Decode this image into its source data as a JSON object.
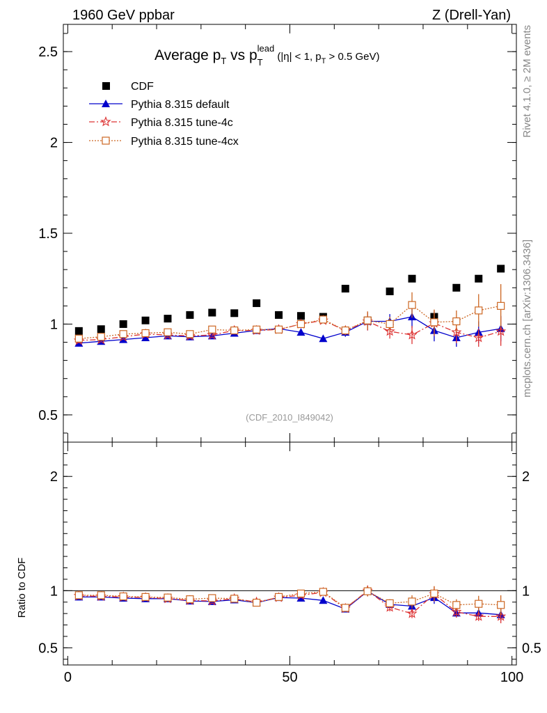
{
  "header": {
    "left": "1960 GeV ppbar",
    "right": "Z (Drell-Yan)"
  },
  "side_labels": {
    "rivet": "Rivet 4.1.0, ≥ 2M events",
    "mcplots": "mcplots.cern.ch [arXiv:1306.3436]"
  },
  "chart_data": [
    {
      "type": "scatter",
      "panel": "main",
      "title": {
        "prefix": "Average p",
        "sub1": "T",
        "mid": " vs p",
        "sub2": "T",
        "sup2": "lead",
        "cond1": " (|η| < 1, p",
        "sub3": "T",
        "cond2": " > 0.5 GeV)"
      },
      "analysis_label": "(CDF_2010_I849042)",
      "xlim": [
        -1,
        101
      ],
      "ylim": [
        0.35,
        2.65
      ],
      "yticks": [
        0.5,
        1,
        1.5,
        2,
        2.5
      ],
      "ytick_labels": [
        "0.5",
        "1",
        "1.5",
        "2",
        "2.5"
      ],
      "legend_position": "top-left",
      "x": [
        2.5,
        7.5,
        12.5,
        17.5,
        22.5,
        27.5,
        32.5,
        37.5,
        42.5,
        47.5,
        52.5,
        57.5,
        62.5,
        67.5,
        72.5,
        77.5,
        82.5,
        87.5,
        92.5,
        97.5
      ],
      "series": [
        {
          "name": "CDF",
          "style": "data",
          "color": "#000000",
          "values": [
            0.962,
            0.972,
            1.0,
            1.02,
            1.03,
            1.05,
            1.063,
            1.06,
            1.115,
            1.05,
            1.045,
            1.04,
            1.195,
            1.02,
            1.18,
            1.25,
            1.04,
            1.2,
            1.25,
            1.305
          ]
        },
        {
          "name": "Pythia 8.315 default",
          "style": "triangle-solid",
          "color": "#0000cc",
          "values": [
            0.895,
            0.905,
            0.915,
            0.925,
            0.935,
            0.93,
            0.935,
            0.95,
            0.965,
            0.975,
            0.955,
            0.92,
            0.955,
            1.015,
            1.015,
            1.04,
            0.965,
            0.925,
            0.955,
            0.975
          ],
          "errors": [
            0.004,
            0.004,
            0.004,
            0.005,
            0.005,
            0.005,
            0.006,
            0.007,
            0.008,
            0.009,
            0.01,
            0.012,
            0.025,
            0.05,
            0.04,
            0.06,
            0.06,
            0.05,
            0.06,
            0.07
          ]
        },
        {
          "name": "Pythia 8.315 tune-4c",
          "style": "star-dashdot",
          "color": "#dd3333",
          "values": [
            0.91,
            0.915,
            0.93,
            0.945,
            0.94,
            0.935,
            0.94,
            0.965,
            0.965,
            0.97,
            1.0,
            1.02,
            0.965,
            1.015,
            0.96,
            0.94,
            1.005,
            0.955,
            0.925,
            0.96
          ],
          "errors": [
            0.004,
            0.004,
            0.005,
            0.005,
            0.005,
            0.006,
            0.006,
            0.007,
            0.008,
            0.009,
            0.012,
            0.015,
            0.025,
            0.05,
            0.04,
            0.05,
            0.07,
            0.06,
            0.05,
            0.08
          ]
        },
        {
          "name": "Pythia 8.315 tune-4cx",
          "style": "square-dotted",
          "color": "#cc6622",
          "values": [
            0.92,
            0.93,
            0.945,
            0.95,
            0.955,
            0.945,
            0.97,
            0.965,
            0.97,
            0.97,
            1.0,
            1.025,
            0.965,
            1.02,
            1.0,
            1.105,
            1.01,
            1.015,
            1.075,
            1.1
          ],
          "errors": [
            0.004,
            0.004,
            0.005,
            0.005,
            0.005,
            0.006,
            0.006,
            0.007,
            0.008,
            0.009,
            0.012,
            0.015,
            0.025,
            0.05,
            0.04,
            0.07,
            0.07,
            0.06,
            0.09,
            0.12
          ]
        }
      ]
    },
    {
      "type": "scatter",
      "panel": "ratio",
      "ylabel": "Ratio to CDF",
      "xlim": [
        -1,
        101
      ],
      "ylim": [
        0.35,
        2.3
      ],
      "yticks": [
        0.5,
        1,
        2
      ],
      "ytick_labels": [
        "0.5",
        "1",
        "2"
      ],
      "right_tick_labels": [
        "0.5",
        "1",
        "2"
      ],
      "xticks": [
        0,
        50,
        100
      ],
      "xtick_labels": [
        "0",
        "50",
        "100"
      ],
      "reference_line": 1,
      "x": [
        2.5,
        7.5,
        12.5,
        17.5,
        22.5,
        27.5,
        32.5,
        37.5,
        42.5,
        47.5,
        52.5,
        57.5,
        62.5,
        67.5,
        72.5,
        77.5,
        82.5,
        87.5,
        92.5,
        97.5
      ],
      "series": [
        {
          "name": "Pythia 8.315 default",
          "style": "triangle-solid",
          "color": "#0000cc",
          "values": [
            0.945,
            0.945,
            0.935,
            0.93,
            0.93,
            0.91,
            0.905,
            0.92,
            0.895,
            0.94,
            0.935,
            0.915,
            0.84,
            0.995,
            0.88,
            0.865,
            0.94,
            0.805,
            0.805,
            0.79
          ],
          "errors": [
            0.004,
            0.004,
            0.004,
            0.005,
            0.005,
            0.005,
            0.006,
            0.007,
            0.008,
            0.009,
            0.01,
            0.012,
            0.02,
            0.045,
            0.035,
            0.05,
            0.055,
            0.04,
            0.05,
            0.055
          ]
        },
        {
          "name": "Pythia 8.315 tune-4c",
          "style": "star-dashdot",
          "color": "#dd3333",
          "values": [
            0.955,
            0.95,
            0.945,
            0.94,
            0.93,
            0.915,
            0.91,
            0.93,
            0.9,
            0.94,
            0.96,
            0.985,
            0.845,
            1.0,
            0.855,
            0.8,
            0.97,
            0.815,
            0.775,
            0.775
          ],
          "errors": [
            0.004,
            0.004,
            0.005,
            0.005,
            0.005,
            0.006,
            0.006,
            0.007,
            0.008,
            0.009,
            0.012,
            0.015,
            0.02,
            0.045,
            0.035,
            0.04,
            0.065,
            0.05,
            0.04,
            0.06
          ]
        },
        {
          "name": "Pythia 8.315 tune-4cx",
          "style": "square-dotted",
          "color": "#cc6622",
          "values": [
            0.96,
            0.96,
            0.95,
            0.945,
            0.94,
            0.925,
            0.935,
            0.93,
            0.895,
            0.945,
            0.975,
            0.99,
            0.85,
            0.995,
            0.89,
            0.905,
            0.975,
            0.875,
            0.885,
            0.875
          ],
          "errors": [
            0.004,
            0.004,
            0.005,
            0.005,
            0.005,
            0.006,
            0.006,
            0.007,
            0.008,
            0.009,
            0.012,
            0.015,
            0.02,
            0.045,
            0.035,
            0.055,
            0.065,
            0.05,
            0.07,
            0.085
          ]
        }
      ]
    }
  ]
}
